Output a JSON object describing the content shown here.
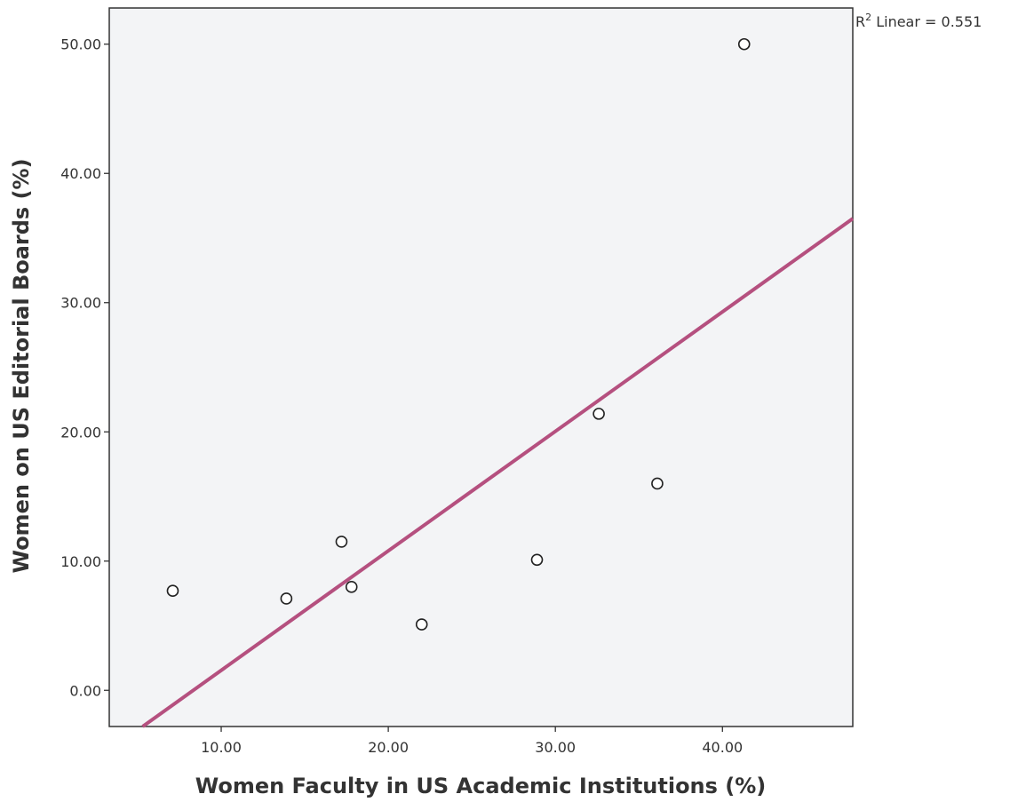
{
  "chart_data": {
    "type": "scatter",
    "title": "",
    "xlabel": "Women Faculty in US Academic Institutions (%)",
    "ylabel": "Women on US Editorial Boards (%)",
    "xlim": [
      3.3,
      47.8
    ],
    "ylim": [
      -2.8,
      52.8
    ],
    "x_ticks": [
      10,
      20,
      30,
      40
    ],
    "x_tick_labels": [
      "10.00",
      "20.00",
      "30.00",
      "40.00"
    ],
    "y_ticks": [
      0,
      10,
      20,
      30,
      40,
      50
    ],
    "y_tick_labels": [
      "0.00",
      "10.00",
      "20.00",
      "30.00",
      "40.00",
      "50.00"
    ],
    "points": [
      {
        "x": 7.1,
        "y": 7.7
      },
      {
        "x": 13.9,
        "y": 7.1
      },
      {
        "x": 17.2,
        "y": 11.5
      },
      {
        "x": 17.8,
        "y": 8.0
      },
      {
        "x": 22.0,
        "y": 5.1
      },
      {
        "x": 28.9,
        "y": 10.1
      },
      {
        "x": 32.6,
        "y": 21.4
      },
      {
        "x": 36.1,
        "y": 16.0
      },
      {
        "x": 41.3,
        "y": 50.0
      }
    ],
    "fit_line": {
      "type": "linear",
      "points": [
        {
          "x": 5.3,
          "y": -2.8
        },
        {
          "x": 47.8,
          "y": 36.5
        }
      ],
      "label_base": "R",
      "label_sup": "2",
      "label_rest": " Linear = 0.551"
    },
    "grid": false,
    "colors": {
      "plot_background": "#f3f4f6",
      "fit_line": "#b5507f",
      "marker_stroke": "#222222",
      "marker_fill": "#ffffff",
      "axis": "#333333",
      "tick_text": "#333333"
    }
  }
}
